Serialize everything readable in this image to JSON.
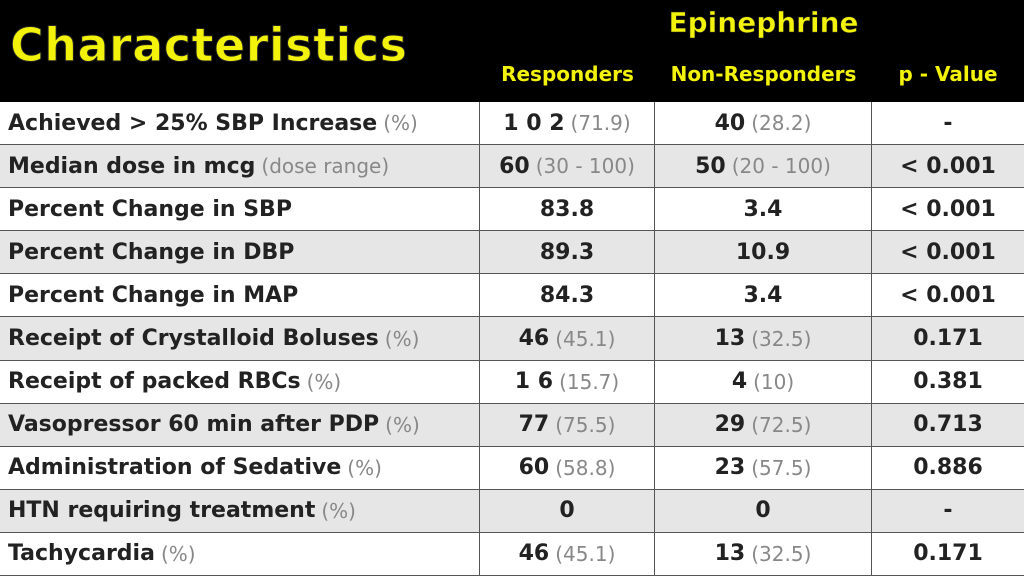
{
  "header": {
    "title": "Characteristics",
    "group": "Epinephrine",
    "columns": [
      "Responders",
      "Non-Responders",
      "p - Value"
    ]
  },
  "colors": {
    "header_bg": "#000000",
    "header_text": "#f2f20a",
    "alt_row": "#e6e6e6",
    "note_text": "#888888"
  },
  "rows": [
    {
      "label": "Achieved > 25% SBP Increase",
      "label_note": "(%)",
      "cells": [
        {
          "value": "1 0 2",
          "note": "(71.9)"
        },
        {
          "value": "40",
          "note": "(28.2)"
        },
        {
          "value": "-",
          "note": ""
        }
      ]
    },
    {
      "label": "Median dose in mcg",
      "label_note": "(dose range)",
      "cells": [
        {
          "value": "60",
          "note": "(30 - 100)"
        },
        {
          "value": "50",
          "note": "(20 - 100)"
        },
        {
          "value": "< 0.001",
          "note": ""
        }
      ]
    },
    {
      "label": "Percent Change in SBP",
      "label_note": "",
      "cells": [
        {
          "value": "83.8",
          "note": ""
        },
        {
          "value": "3.4",
          "note": ""
        },
        {
          "value": "< 0.001",
          "note": ""
        }
      ]
    },
    {
      "label": "Percent Change in DBP",
      "label_note": "",
      "cells": [
        {
          "value": "89.3",
          "note": ""
        },
        {
          "value": "10.9",
          "note": ""
        },
        {
          "value": "< 0.001",
          "note": ""
        }
      ]
    },
    {
      "label": "Percent Change in MAP",
      "label_note": "",
      "cells": [
        {
          "value": "84.3",
          "note": ""
        },
        {
          "value": "3.4",
          "note": ""
        },
        {
          "value": "< 0.001",
          "note": ""
        }
      ]
    },
    {
      "label": "Receipt of Crystalloid Boluses",
      "label_note": "(%)",
      "cells": [
        {
          "value": "46",
          "note": "(45.1)"
        },
        {
          "value": "13",
          "note": "(32.5)"
        },
        {
          "value": "0.171",
          "note": ""
        }
      ]
    },
    {
      "label": "Receipt of packed RBCs",
      "label_note": "(%)",
      "cells": [
        {
          "value": "1 6",
          "note": "(15.7)"
        },
        {
          "value": "4",
          "note": "(10)"
        },
        {
          "value": "0.381",
          "note": ""
        }
      ]
    },
    {
      "label": "Vasopressor 60 min after PDP",
      "label_note": "(%)",
      "cells": [
        {
          "value": "77",
          "note": "(75.5)"
        },
        {
          "value": "29",
          "note": "(72.5)"
        },
        {
          "value": "0.713",
          "note": ""
        }
      ]
    },
    {
      "label": "Administration of Sedative",
      "label_note": "(%)",
      "cells": [
        {
          "value": "60",
          "note": "(58.8)"
        },
        {
          "value": "23",
          "note": "(57.5)"
        },
        {
          "value": "0.886",
          "note": ""
        }
      ]
    },
    {
      "label": "HTN requiring treatment",
      "label_note": "(%)",
      "cells": [
        {
          "value": "0",
          "note": ""
        },
        {
          "value": "0",
          "note": ""
        },
        {
          "value": "-",
          "note": ""
        }
      ]
    },
    {
      "label": "Tachycardia",
      "label_note": "(%)",
      "cells": [
        {
          "value": "46",
          "note": "(45.1)"
        },
        {
          "value": "13",
          "note": "(32.5)"
        },
        {
          "value": "0.171",
          "note": ""
        }
      ]
    }
  ]
}
